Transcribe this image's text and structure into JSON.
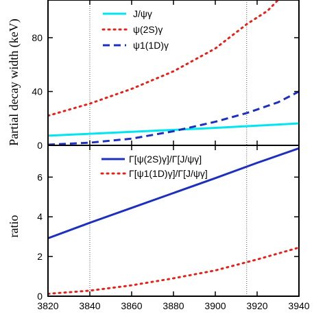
{
  "chart_data": [
    {
      "type": "line",
      "panel": "top",
      "ylabel": "Partial decay width (keV)",
      "xlim": [
        3820,
        3940
      ],
      "ylim": [
        0,
        108
      ],
      "y_ticks": [
        0,
        40,
        80
      ],
      "grid": false,
      "legend_position": "top-left",
      "vlines": [
        3840,
        3915
      ],
      "series": [
        {
          "name": "J/ψγ",
          "color": "#00e5f0",
          "style": "solid",
          "x": [
            3820,
            3840,
            3860,
            3880,
            3900,
            3920,
            3940
          ],
          "y": [
            7.2,
            8.6,
            10.1,
            11.5,
            13.0,
            14.6,
            16.3
          ]
        },
        {
          "name": "ψ(2S)γ",
          "color": "#e8201a",
          "style": "dotted",
          "x": [
            3820,
            3840,
            3860,
            3880,
            3900,
            3915,
            3925,
            3930
          ],
          "y": [
            22,
            31,
            42,
            55,
            72,
            90,
            100,
            108
          ]
        },
        {
          "name": "ψ1(1D)γ",
          "color": "#1c2fbd",
          "style": "dashed",
          "x": [
            3820,
            3840,
            3860,
            3880,
            3900,
            3915,
            3930,
            3940
          ],
          "y": [
            0.5,
            2,
            5,
            10.5,
            17.5,
            24,
            32,
            40
          ]
        }
      ]
    },
    {
      "type": "line",
      "panel": "bottom",
      "ylabel": "ratio",
      "xlim": [
        3820,
        3940
      ],
      "ylim": [
        0,
        7.6
      ],
      "x_ticks": [
        3820,
        3840,
        3860,
        3880,
        3900,
        3920,
        3940
      ],
      "y_ticks": [
        0,
        2,
        4,
        6
      ],
      "grid": false,
      "legend_position": "top-right",
      "vlines": [
        3840,
        3915
      ],
      "series": [
        {
          "name": "Γ[ψ(2S)γ]/Γ[J/ψγ]",
          "color": "#1c2fbd",
          "style": "solid",
          "x": [
            3820,
            3840,
            3860,
            3880,
            3900,
            3920,
            3940
          ],
          "y": [
            2.92,
            3.7,
            4.45,
            5.2,
            5.95,
            6.72,
            7.45
          ]
        },
        {
          "name": "Γ[ψ1(1D)γ]/Γ[J/ψγ]",
          "color": "#e8201a",
          "style": "dotted",
          "x": [
            3820,
            3840,
            3860,
            3880,
            3900,
            3920,
            3940
          ],
          "y": [
            0.12,
            0.28,
            0.55,
            0.9,
            1.3,
            1.85,
            2.45
          ]
        }
      ]
    }
  ]
}
